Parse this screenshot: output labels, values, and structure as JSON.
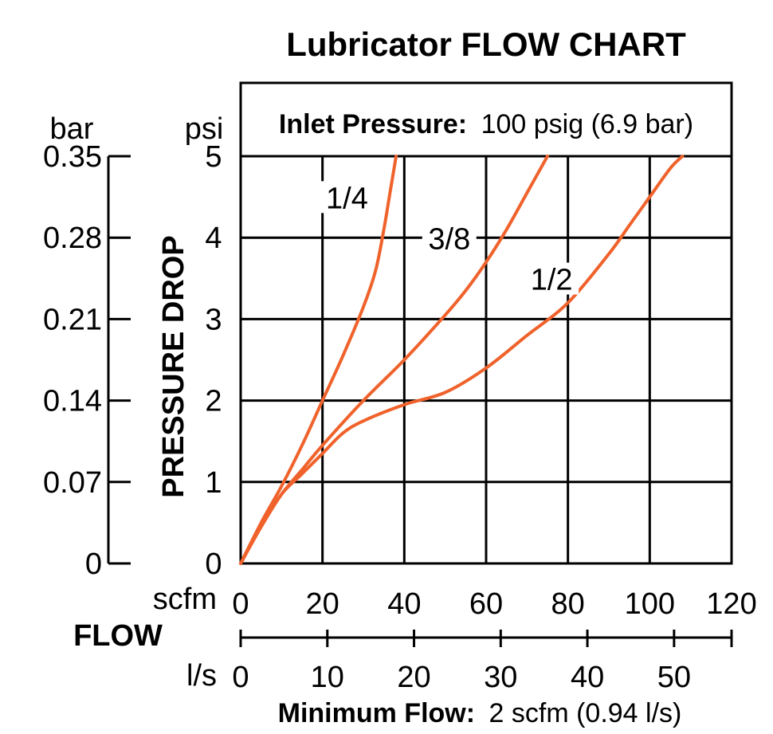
{
  "chart_data": {
    "type": "line",
    "title": "Lubricator FLOW CHART",
    "header_bold": "Inlet Pressure:",
    "header_rest": "100 psig (6.9 bar)",
    "footer_bold": "Minimum Flow:",
    "footer_rest": "2 scfm (0.94 l/s)",
    "ylabel": "PRESSURE DROP",
    "y_unit_psi": "psi",
    "y_unit_bar": "bar",
    "xlabel": "FLOW",
    "x_unit_scfm": "scfm",
    "x_unit_ls": "l/s",
    "xlim": [
      0,
      120
    ],
    "ylim": [
      0,
      5
    ],
    "grid": true,
    "y_ticks_psi": [
      "0",
      "1",
      "2",
      "3",
      "4",
      "5"
    ],
    "y_ticks_bar": [
      "0",
      "0.07",
      "0.14",
      "0.21",
      "0.28",
      "0.35"
    ],
    "x_ticks_scfm": [
      "0",
      "20",
      "40",
      "60",
      "80",
      "100",
      "120"
    ],
    "x_ticks_ls": [
      "0",
      "10",
      "20",
      "30",
      "40",
      "50"
    ],
    "series_color": "#f0622b",
    "series": [
      {
        "name": "1/4",
        "x": [
          0,
          5,
          10,
          15,
          20,
          25,
          30,
          33,
          35,
          36.5,
          38
        ],
        "y": [
          0,
          0.5,
          0.95,
          1.45,
          2.0,
          2.55,
          3.15,
          3.6,
          4.1,
          4.55,
          5.0
        ]
      },
      {
        "name": "3/8",
        "x": [
          0,
          5,
          10,
          15,
          20,
          30,
          40,
          50,
          55,
          60,
          65,
          70,
          75
        ],
        "y": [
          0,
          0.45,
          0.85,
          1.15,
          1.45,
          2.0,
          2.5,
          3.05,
          3.35,
          3.7,
          4.1,
          4.55,
          5.0
        ]
      },
      {
        "name": "1/2",
        "x": [
          0,
          5,
          10,
          15,
          20,
          25,
          30,
          40,
          50,
          60,
          70,
          80,
          90,
          95,
          100,
          105,
          108
        ],
        "y": [
          0,
          0.45,
          0.85,
          1.1,
          1.35,
          1.6,
          1.75,
          1.95,
          2.1,
          2.4,
          2.8,
          3.2,
          3.8,
          4.15,
          4.5,
          4.85,
          5.0
        ]
      }
    ]
  }
}
